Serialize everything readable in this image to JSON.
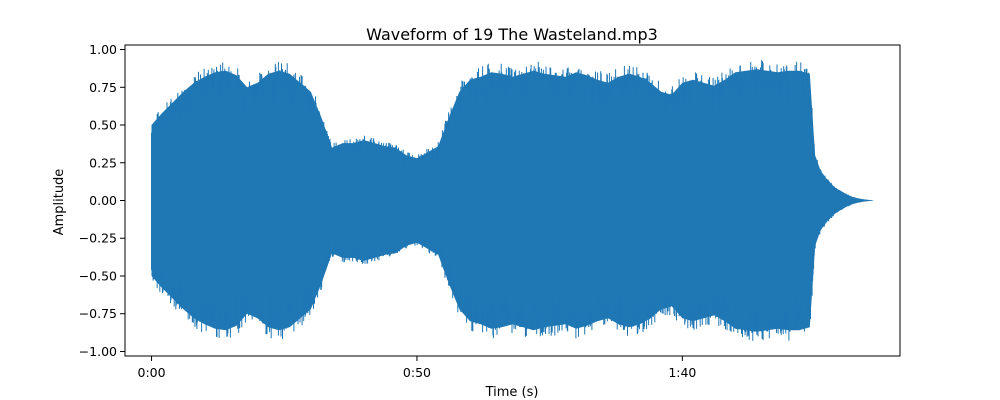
{
  "chart_data": {
    "type": "area",
    "title": "Waveform of 19 The Wasteland.mp3",
    "xlabel": "Time (s)",
    "ylabel": "Amplitude",
    "xlim": [
      -5,
      141
    ],
    "ylim": [
      -1.03,
      1.03
    ],
    "x_ticks": [
      {
        "value": 0,
        "label": "0:00"
      },
      {
        "value": 50,
        "label": "0:50"
      },
      {
        "value": 100,
        "label": "1:40"
      }
    ],
    "y_ticks": [
      {
        "value": 1.0,
        "label": "1.00"
      },
      {
        "value": 0.75,
        "label": "0.75"
      },
      {
        "value": 0.5,
        "label": "0.50"
      },
      {
        "value": 0.25,
        "label": "0.25"
      },
      {
        "value": 0.0,
        "label": "0.00"
      },
      {
        "value": -0.25,
        "label": "−0.25"
      },
      {
        "value": -0.5,
        "label": "−0.50"
      },
      {
        "value": -0.75,
        "label": "−0.75"
      },
      {
        "value": -1.0,
        "label": "−1.00"
      }
    ],
    "grid": false,
    "series_color": "#1f77b4",
    "envelope": {
      "name": "",
      "time": [
        0,
        2,
        4,
        6,
        8,
        10,
        12,
        14,
        16,
        18,
        20,
        22,
        24,
        26,
        28,
        30,
        32,
        34,
        36,
        38,
        40,
        42,
        44,
        46,
        48,
        50,
        52,
        54,
        56,
        58,
        60,
        62,
        64,
        66,
        68,
        70,
        72,
        74,
        76,
        78,
        80,
        82,
        84,
        86,
        88,
        90,
        92,
        94,
        96,
        98,
        100,
        102,
        104,
        106,
        108,
        110,
        112,
        114,
        116,
        118,
        120,
        122,
        124,
        125,
        126,
        127,
        128,
        129,
        130,
        131,
        132,
        133,
        134,
        135,
        136
      ],
      "upper": [
        0.5,
        0.58,
        0.65,
        0.72,
        0.78,
        0.82,
        0.85,
        0.86,
        0.83,
        0.75,
        0.78,
        0.84,
        0.86,
        0.84,
        0.78,
        0.72,
        0.55,
        0.35,
        0.38,
        0.38,
        0.4,
        0.38,
        0.36,
        0.35,
        0.3,
        0.28,
        0.32,
        0.36,
        0.55,
        0.72,
        0.8,
        0.82,
        0.85,
        0.84,
        0.82,
        0.84,
        0.86,
        0.84,
        0.83,
        0.82,
        0.85,
        0.83,
        0.8,
        0.78,
        0.82,
        0.84,
        0.82,
        0.78,
        0.72,
        0.7,
        0.78,
        0.8,
        0.78,
        0.76,
        0.8,
        0.85,
        0.86,
        0.87,
        0.86,
        0.85,
        0.86,
        0.86,
        0.84,
        0.3,
        0.2,
        0.15,
        0.11,
        0.08,
        0.06,
        0.04,
        0.025,
        0.015,
        0.008,
        0.004,
        0.0
      ],
      "lower": [
        -0.5,
        -0.58,
        -0.65,
        -0.72,
        -0.78,
        -0.82,
        -0.85,
        -0.86,
        -0.83,
        -0.75,
        -0.78,
        -0.84,
        -0.86,
        -0.84,
        -0.78,
        -0.72,
        -0.55,
        -0.35,
        -0.38,
        -0.38,
        -0.4,
        -0.38,
        -0.36,
        -0.35,
        -0.3,
        -0.28,
        -0.32,
        -0.36,
        -0.55,
        -0.72,
        -0.8,
        -0.82,
        -0.85,
        -0.84,
        -0.82,
        -0.84,
        -0.86,
        -0.84,
        -0.83,
        -0.82,
        -0.85,
        -0.83,
        -0.8,
        -0.78,
        -0.82,
        -0.84,
        -0.82,
        -0.78,
        -0.72,
        -0.7,
        -0.78,
        -0.8,
        -0.78,
        -0.76,
        -0.8,
        -0.85,
        -0.86,
        -0.87,
        -0.86,
        -0.85,
        -0.86,
        -0.86,
        -0.84,
        -0.3,
        -0.2,
        -0.15,
        -0.11,
        -0.08,
        -0.06,
        -0.04,
        -0.025,
        -0.015,
        -0.008,
        -0.004,
        0.0
      ]
    }
  }
}
